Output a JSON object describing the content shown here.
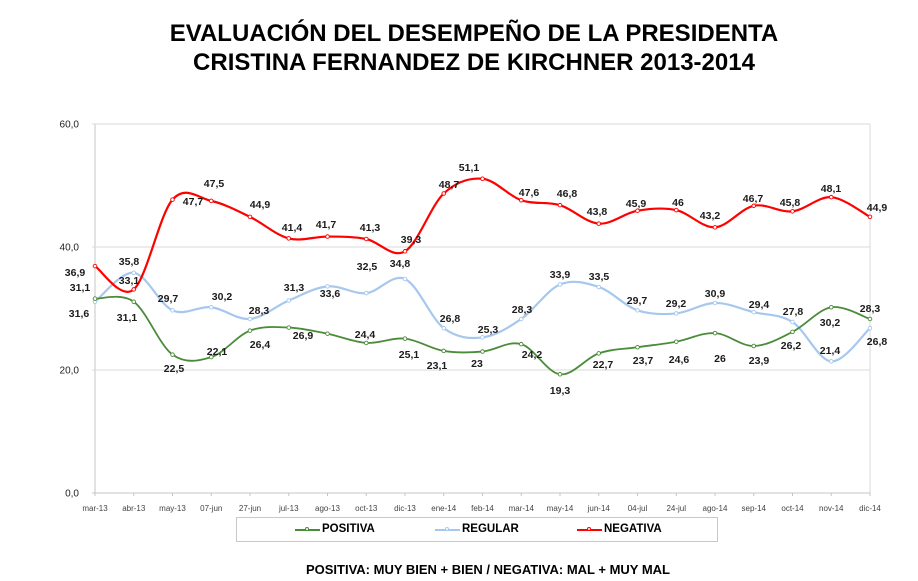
{
  "chart_data": {
    "type": "line",
    "smoothed": true,
    "title": "EVALUACIÓN DEL DESEMPEÑO DE LA PRESIDENTA CRISTINA FERNANDEZ DE KIRCHNER 2013-2014",
    "title_lines": [
      "EVALUACIÓN DEL DESEMPEÑO DE LA PRESIDENTA",
      "CRISTINA FERNANDEZ DE KIRCHNER 2013-2014"
    ],
    "xlabel": "",
    "ylabel": "",
    "categories": [
      "mar-13",
      "abr-13",
      "may-13",
      "07-jun",
      "27-jun",
      "jul-13",
      "ago-13",
      "oct-13",
      "dic-13",
      "ene-14",
      "feb-14",
      "mar-14",
      "may-14",
      "jun-14",
      "04-jul",
      "24-jul",
      "ago-14",
      "sep-14",
      "oct-14",
      "nov-14",
      "dic-14"
    ],
    "ylim": [
      0,
      60
    ],
    "y_ticks": [
      0,
      20,
      40,
      60
    ],
    "y_tick_labels": [
      "0,0",
      "20,0",
      "40,0",
      "60,0"
    ],
    "grid": true,
    "legend_position": "bottom",
    "series": [
      {
        "name": "POSITIVA",
        "color": "#4A8C3A",
        "values": [
          31.6,
          31.1,
          22.5,
          22.1,
          26.4,
          26.9,
          25.9,
          24.4,
          25.1,
          23.1,
          23,
          24.2,
          19.3,
          22.7,
          23.7,
          24.6,
          26,
          23.9,
          26.2,
          30.2,
          28.3
        ],
        "labels": [
          "31,6",
          "31,1",
          "22,5",
          "22,1",
          "26,4",
          "26,9",
          null,
          "24,4",
          "25,1",
          "23,1",
          "23",
          "24,2",
          "19,3",
          "22,7",
          "23,7",
          "24,6",
          "26",
          "23,9",
          "26,2",
          "30,2",
          "28,3"
        ]
      },
      {
        "name": "REGULAR",
        "color": "#A7C8EE",
        "values": [
          31.1,
          35.8,
          29.7,
          30.2,
          28.3,
          31.3,
          33.6,
          32.5,
          34.8,
          26.8,
          25.3,
          28.3,
          33.9,
          33.5,
          29.7,
          29.2,
          30.9,
          29.4,
          27.8,
          21.4,
          26.8
        ],
        "labels": [
          "31,1",
          "35,8",
          "29,7",
          "30,2",
          "28,3",
          "31,3",
          "33,6",
          "32,5",
          "34,8",
          "26,8",
          "25,3",
          "28,3",
          "33,9",
          "33,5",
          "29,7",
          "29,2",
          "30,9",
          "29,4",
          "27,8",
          "21,4",
          "26,8"
        ]
      },
      {
        "name": "NEGATIVA",
        "color": "#FF0000",
        "values": [
          36.9,
          33.1,
          47.7,
          47.5,
          44.9,
          41.4,
          41.7,
          41.3,
          39.3,
          48.7,
          51.1,
          47.6,
          46.8,
          43.8,
          45.9,
          46,
          43.2,
          46.7,
          45.8,
          48.1,
          44.9
        ],
        "labels": [
          "36,9",
          "33,1",
          "47,7",
          "47,5",
          "44,9",
          "41,4",
          "41,7",
          "41,3",
          "39,3",
          "48,7",
          "51,1",
          "47,6",
          "46,8",
          "43,8",
          "45,9",
          "46",
          "43,2",
          "46,7",
          "45,8",
          "48,1",
          "44,9"
        ]
      }
    ],
    "footnote": "POSITIVA: MUY BIEN + BIEN / NEGATIVA: MAL + MUY MAL"
  }
}
